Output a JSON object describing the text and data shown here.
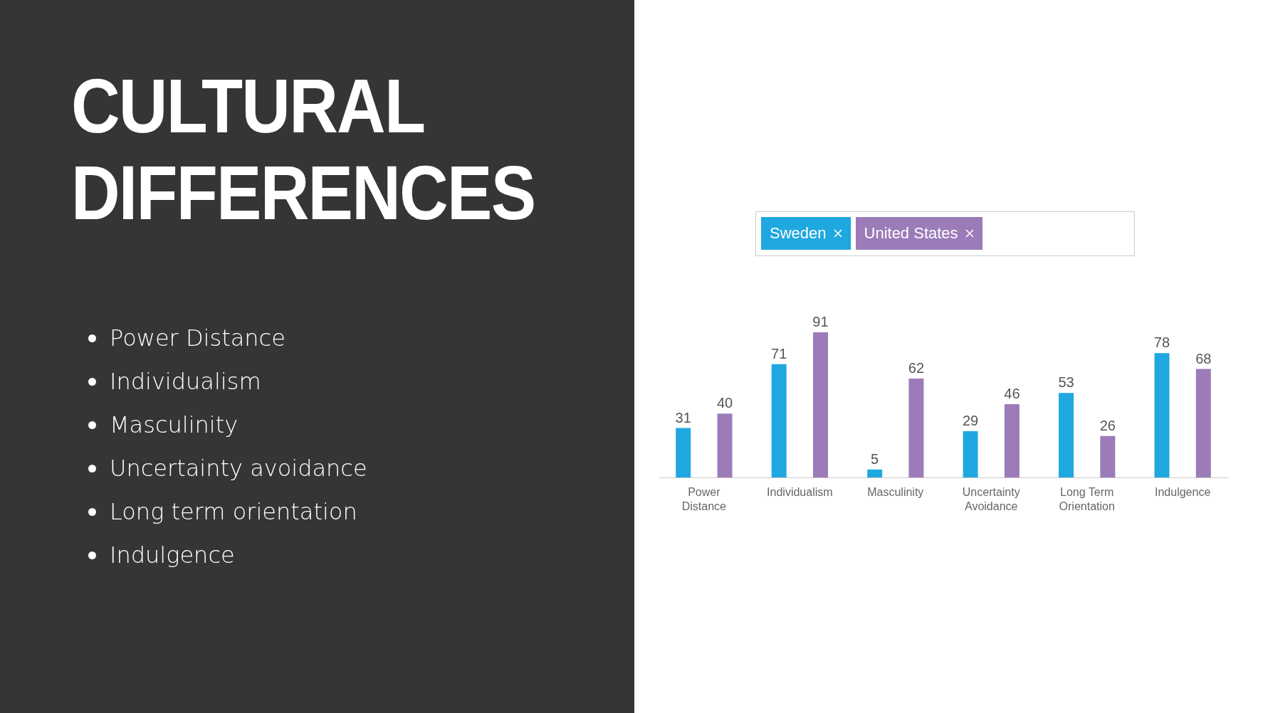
{
  "chart_data": {
    "type": "bar",
    "title": "CULTURAL DIFFERENCES",
    "annotations": [
      "Power Distance",
      "Individualism",
      "Masculinity",
      "Uncertainty avoidance",
      "Long term orientation",
      "Indulgence"
    ],
    "categories": [
      "Power Distance",
      "Individualism",
      "Masculinity",
      "Uncertainty Avoidance",
      "Long Term Orientation",
      "Indulgence"
    ],
    "series": [
      {
        "name": "Sweden",
        "color": "#1fa8e0",
        "values": [
          31,
          71,
          5,
          29,
          53,
          78
        ]
      },
      {
        "name": "United States",
        "color": "#9b7bb8",
        "values": [
          40,
          91,
          62,
          46,
          26,
          68
        ]
      }
    ],
    "data_labels": true,
    "legend": "top",
    "grid": false
  }
}
